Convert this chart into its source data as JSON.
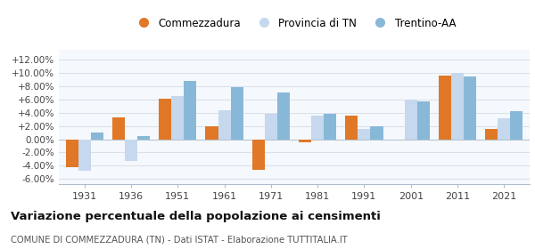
{
  "years": [
    1931,
    1936,
    1951,
    1961,
    1971,
    1981,
    1991,
    2001,
    2011,
    2021
  ],
  "commezzadura": [
    -4.2,
    3.3,
    6.1,
    2.0,
    -4.6,
    -0.5,
    3.6,
    0.0,
    9.6,
    1.5
  ],
  "provincia_tn": [
    -4.7,
    -3.3,
    6.5,
    4.4,
    3.9,
    3.5,
    1.5,
    6.0,
    10.0,
    3.1
  ],
  "trentino_aa": [
    1.0,
    0.5,
    8.8,
    7.8,
    7.1,
    3.8,
    2.0,
    5.7,
    9.5,
    4.3
  ],
  "color_commezzadura": "#e07828",
  "color_provincia": "#c5d8ee",
  "color_trentino": "#88b8d8",
  "bg_color": "#f5f8fc",
  "grid_color": "#d8e0ea",
  "ylim": [
    -6.8,
    13.5
  ],
  "yticks": [
    -6.0,
    -4.0,
    -2.0,
    0.0,
    2.0,
    4.0,
    6.0,
    8.0,
    10.0,
    12.0
  ],
  "ytick_labels": [
    "-6.00%",
    "-4.00%",
    "-2.00%",
    "0.00%",
    "+2.00%",
    "+4.00%",
    "+6.00%",
    "+8.00%",
    "+10.00%",
    "+12.00%"
  ],
  "title": "Variazione percentuale della popolazione ai censimenti",
  "subtitle": "COMUNE DI COMMEZZADURA (TN) - Dati ISTAT - Elaborazione TUTTITALIA.IT",
  "legend_labels": [
    "Commezzadura",
    "Provincia di TN",
    "Trentino-AA"
  ],
  "bar_width": 0.27
}
